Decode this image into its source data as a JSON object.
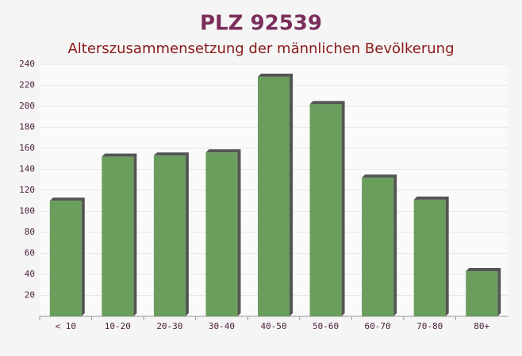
{
  "chart_data": {
    "type": "bar",
    "title": "PLZ 92539",
    "subtitle": "Alterszusammensetzung der männlichen Bevölkerung",
    "categories": [
      "< 10",
      "10-20",
      "20-30",
      "30-40",
      "40-50",
      "50-60",
      "60-70",
      "70-80",
      "80+"
    ],
    "values": [
      110,
      152,
      153,
      156,
      228,
      202,
      132,
      111,
      43
    ],
    "color": "#6a9e5c",
    "ylim": [
      0,
      240
    ],
    "yticks": [
      20,
      40,
      60,
      80,
      100,
      120,
      140,
      160,
      180,
      200,
      220,
      240
    ],
    "grid": true
  }
}
